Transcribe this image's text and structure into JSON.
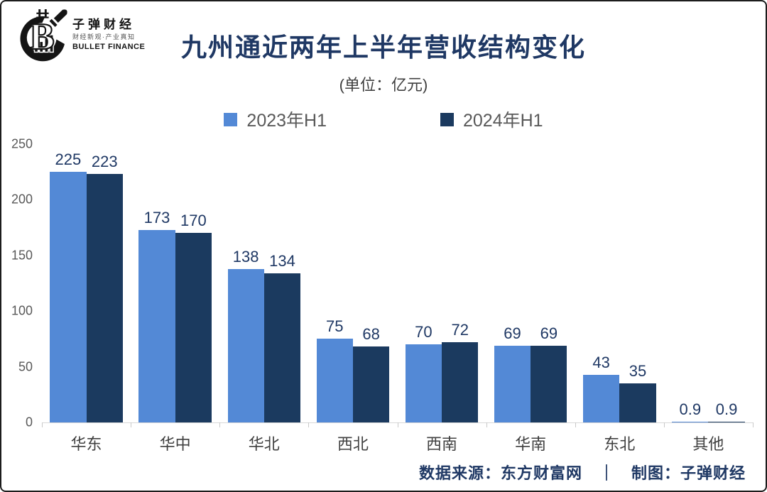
{
  "logo": {
    "brand": "子弹财经",
    "slogan": "财经新观·产业真知",
    "sub": "BULLET FINANCE"
  },
  "header": {
    "title": "九州通近两年上半年营收结构变化",
    "subtitle": "(单位：亿元)"
  },
  "legend": [
    {
      "label": "2023年H1",
      "color": "#5389D6"
    },
    {
      "label": "2024年H1",
      "color": "#1B3A5F"
    }
  ],
  "chart_data": {
    "type": "bar",
    "title": "九州通近两年上半年营收结构变化",
    "subtitle": "(单位：亿元)",
    "categories": [
      "华东",
      "华中",
      "华北",
      "西北",
      "西南",
      "华南",
      "东北",
      "其他"
    ],
    "series": [
      {
        "name": "2023年H1",
        "color": "#5389D6",
        "values": [
          225,
          173,
          138,
          75,
          70,
          69,
          43,
          0.9
        ]
      },
      {
        "name": "2024年H1",
        "color": "#1B3A5F",
        "values": [
          223,
          170,
          134,
          68,
          72,
          69,
          35,
          0.9
        ]
      }
    ],
    "ylim": [
      0,
      250
    ],
    "yticks": [
      0,
      50,
      100,
      150,
      200,
      250
    ],
    "grid": false,
    "legend_position": "top",
    "value_labels": true
  },
  "footer": {
    "credit_line": "数据来源：东方财富网　｜　制图：子弹财经"
  }
}
